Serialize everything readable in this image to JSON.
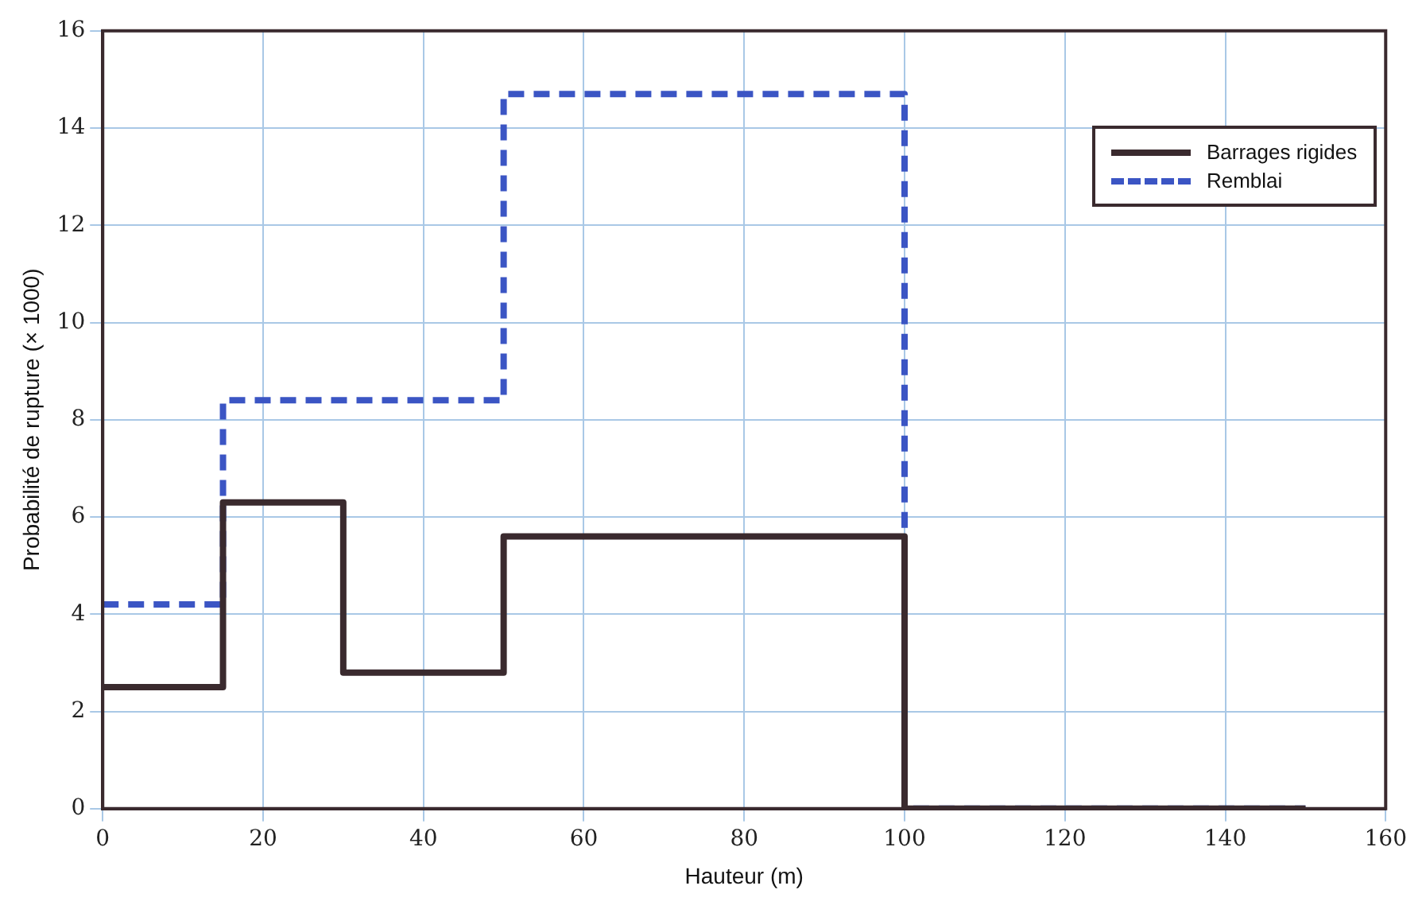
{
  "chart_data": {
    "type": "step",
    "xlabel": "Hauteur (m)",
    "ylabel": "Probabilité de rupture (× 1000)",
    "xlim": [
      0,
      160
    ],
    "xticks": [
      0,
      20,
      40,
      60,
      80,
      100,
      120,
      140,
      160
    ],
    "ylim": [
      0,
      16
    ],
    "yticks": [
      0,
      2,
      4,
      6,
      8,
      10,
      12,
      14,
      16
    ],
    "grid": true,
    "legend": "top right",
    "series": [
      {
        "name": "Barrages rigides",
        "color": "#3a2a2e",
        "line_style": "solid",
        "x": [
          0,
          15,
          30,
          50,
          100,
          150
        ],
        "values": [
          2.5,
          6.3,
          2.8,
          5.6,
          0,
          0
        ]
      },
      {
        "name": "Remblai",
        "color": "#3b55c4",
        "line_style": "dashed",
        "x": [
          0,
          15,
          50,
          100,
          150
        ],
        "values": [
          4.2,
          8.4,
          14.7,
          0,
          0
        ]
      }
    ]
  }
}
